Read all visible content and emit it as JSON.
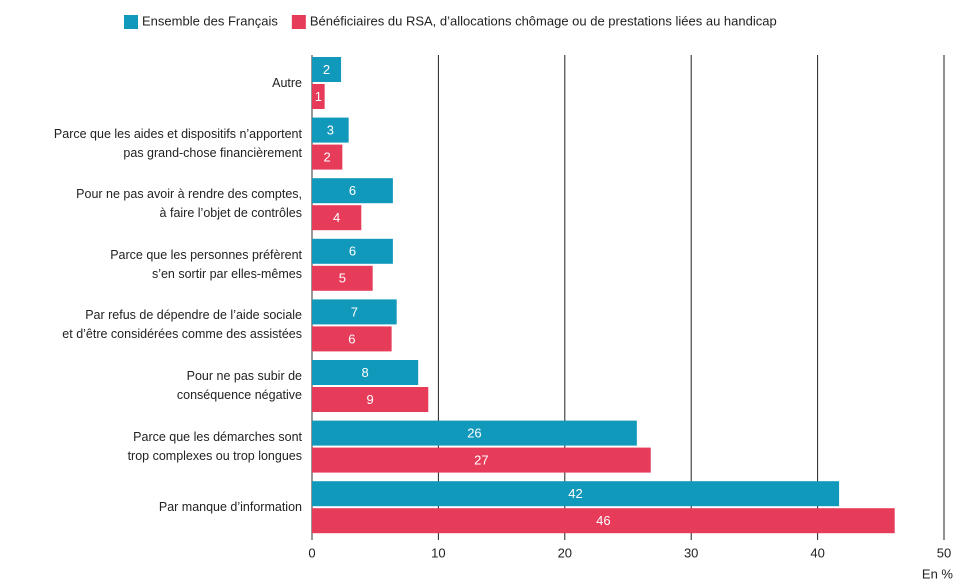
{
  "chart_data": {
    "type": "hbar",
    "categories": [
      "Autre",
      "Parce que les aides et dispositifs n’apportent\npas grand-chose financièrement",
      "Pour ne pas avoir à rendre des comptes,\nà faire l’objet de contrôles",
      "Parce que les personnes préfèrent\ns’en sortir par elles-mêmes",
      "Par refus de dépendre de l’aide sociale\net d’être considérées comme des assistées",
      "Pour ne pas subir de\nconséquence négative",
      "Parce que les démarches sont\ntrop complexes ou trop longues",
      "Par manque d’information"
    ],
    "series": [
      {
        "name": "Ensemble des Français",
        "color": "#1199bb",
        "values": [
          2.3,
          2.9,
          6.4,
          6.4,
          6.7,
          8.4,
          25.7,
          41.7
        ],
        "value_labels": [
          "2",
          "3",
          "6",
          "6",
          "7",
          "8",
          "26",
          "42"
        ]
      },
      {
        "name": "Bénéficiaires du RSA, d’allocations chômage ou de prestations liées au handicap",
        "color": "#e63c5a",
        "values": [
          1.0,
          2.4,
          3.9,
          4.8,
          6.3,
          9.2,
          26.8,
          46.1
        ],
        "value_labels": [
          "1",
          "2",
          "4",
          "5",
          "6",
          "9",
          "27",
          "46"
        ]
      }
    ],
    "xlabel": "En %",
    "xlim": [
      0,
      50
    ],
    "xticks": [
      0,
      10,
      20,
      30,
      40,
      50
    ],
    "grid": true,
    "legend": "top"
  }
}
